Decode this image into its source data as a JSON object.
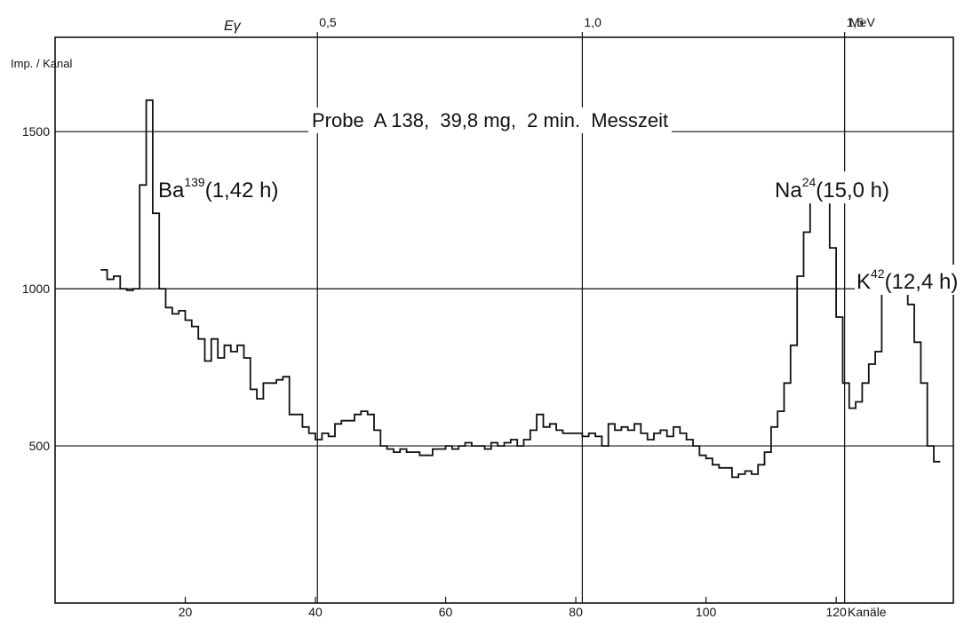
{
  "chart_data": {
    "type": "line",
    "step": true,
    "title": "Probe  A 138,  39,8 mg,  2 min.  Messzeit",
    "ylabel": "Imp. / Kanal",
    "xlabel": "Kanäle",
    "top_axis_label": "Eγ",
    "top_axis_unit": "MeV",
    "xlim": [
      0,
      138
    ],
    "ylim": [
      0,
      1800
    ],
    "grid": true,
    "x_ticks": [
      20,
      40,
      60,
      80,
      100,
      120
    ],
    "y_ticks": [
      500,
      1000,
      1500
    ],
    "top_ticks": [
      {
        "label": "0,5",
        "channel": 40.3
      },
      {
        "label": "1,0",
        "channel": 81
      },
      {
        "label": "1,5",
        "channel": 121.3
      }
    ],
    "annotations": [
      {
        "text": "Ba",
        "sup": "139",
        "rest": "(1,42 h)"
      },
      {
        "text": "Na",
        "sup": "24",
        "rest": "(15,0 h)"
      },
      {
        "text": "K",
        "sup": "42",
        "rest": "(12,4 h)"
      }
    ],
    "series": [
      {
        "channel_start": 7,
        "counts": [
          1060,
          1030,
          1040,
          1000,
          995,
          1000,
          1330,
          1600,
          1240,
          1000,
          940,
          920,
          930,
          900,
          880,
          840,
          770,
          840,
          780,
          820,
          800,
          820,
          780,
          680,
          650,
          700,
          700,
          710,
          720,
          600,
          600,
          560,
          540,
          520,
          540,
          530,
          570,
          580,
          580,
          600,
          610,
          600,
          550,
          500,
          490,
          480,
          490,
          480,
          480,
          470,
          470,
          490,
          490,
          500,
          490,
          500,
          510,
          500,
          500,
          490,
          510,
          500,
          510,
          520,
          500,
          520,
          550,
          600,
          560,
          570,
          550,
          540,
          540,
          540,
          530,
          540,
          530,
          500,
          570,
          550,
          560,
          550,
          570,
          540,
          520,
          540,
          550,
          530,
          560,
          540,
          520,
          500,
          470,
          460,
          440,
          430,
          430,
          400,
          410,
          420,
          410,
          440,
          480,
          560,
          610,
          700,
          820,
          1040,
          1180,
          1290,
          1350,
          1280,
          1130,
          910,
          700,
          620,
          640,
          700,
          760,
          800,
          1000,
          1030,
          1040,
          1030,
          950,
          830,
          700,
          500,
          450
        ]
      }
    ]
  }
}
